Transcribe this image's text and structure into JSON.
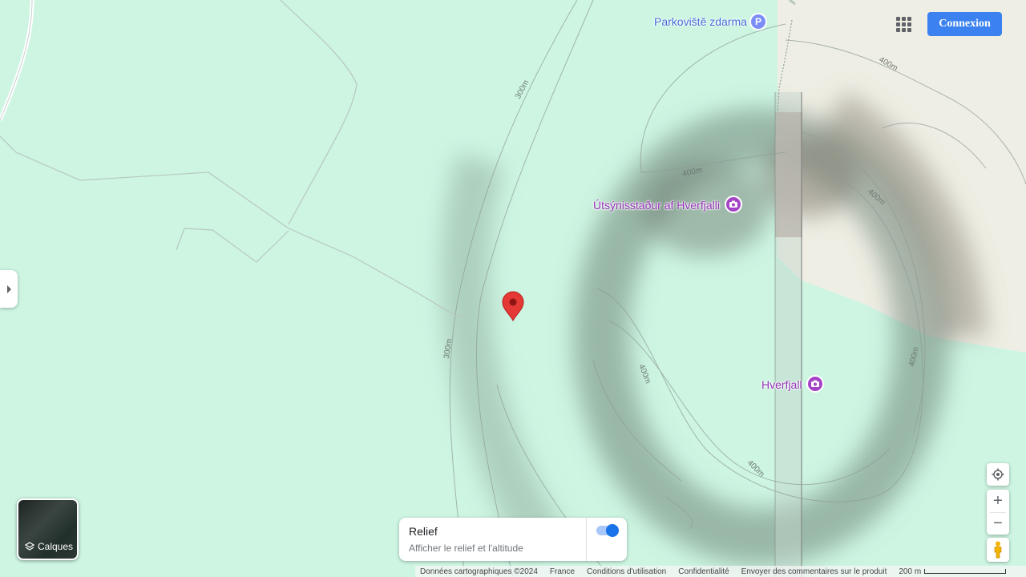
{
  "map": {
    "pois": [
      {
        "name": "Parkoviště zdarma",
        "type": "parking",
        "icon": "parking-icon"
      },
      {
        "name": "Útsýnisstaður af Hverfjalli",
        "type": "attraction",
        "icon": "camera-icon"
      },
      {
        "name": "Hverfjall",
        "type": "attraction",
        "icon": "camera-icon"
      }
    ],
    "contours": [
      "300m",
      "300m",
      "400m",
      "400m",
      "400m",
      "400m",
      "400m",
      "400m"
    ],
    "marker_icon": "location-pin-icon"
  },
  "header": {
    "apps_icon": "apps-grid-icon",
    "signin_label": "Connexion"
  },
  "layers": {
    "label": "Calques",
    "icon": "layers-icon"
  },
  "relief": {
    "title": "Relief",
    "subtitle": "Afficher le relief et l'altitude",
    "enabled": true
  },
  "controls": {
    "locate_icon": "my-location-icon",
    "zoom_in_label": "+",
    "zoom_out_label": "−",
    "pegman_icon": "pegman-icon"
  },
  "footer": {
    "data_credit": "Données cartographiques ©2024",
    "country": "France",
    "terms": "Conditions d'utilisation",
    "privacy": "Confidentialité",
    "feedback": "Envoyer des commentaires sur le produit",
    "scale": "200 m"
  },
  "colors": {
    "terrain": "#cdf5e2",
    "poi": "#9334b6",
    "button_primary": "#3b82f0"
  }
}
